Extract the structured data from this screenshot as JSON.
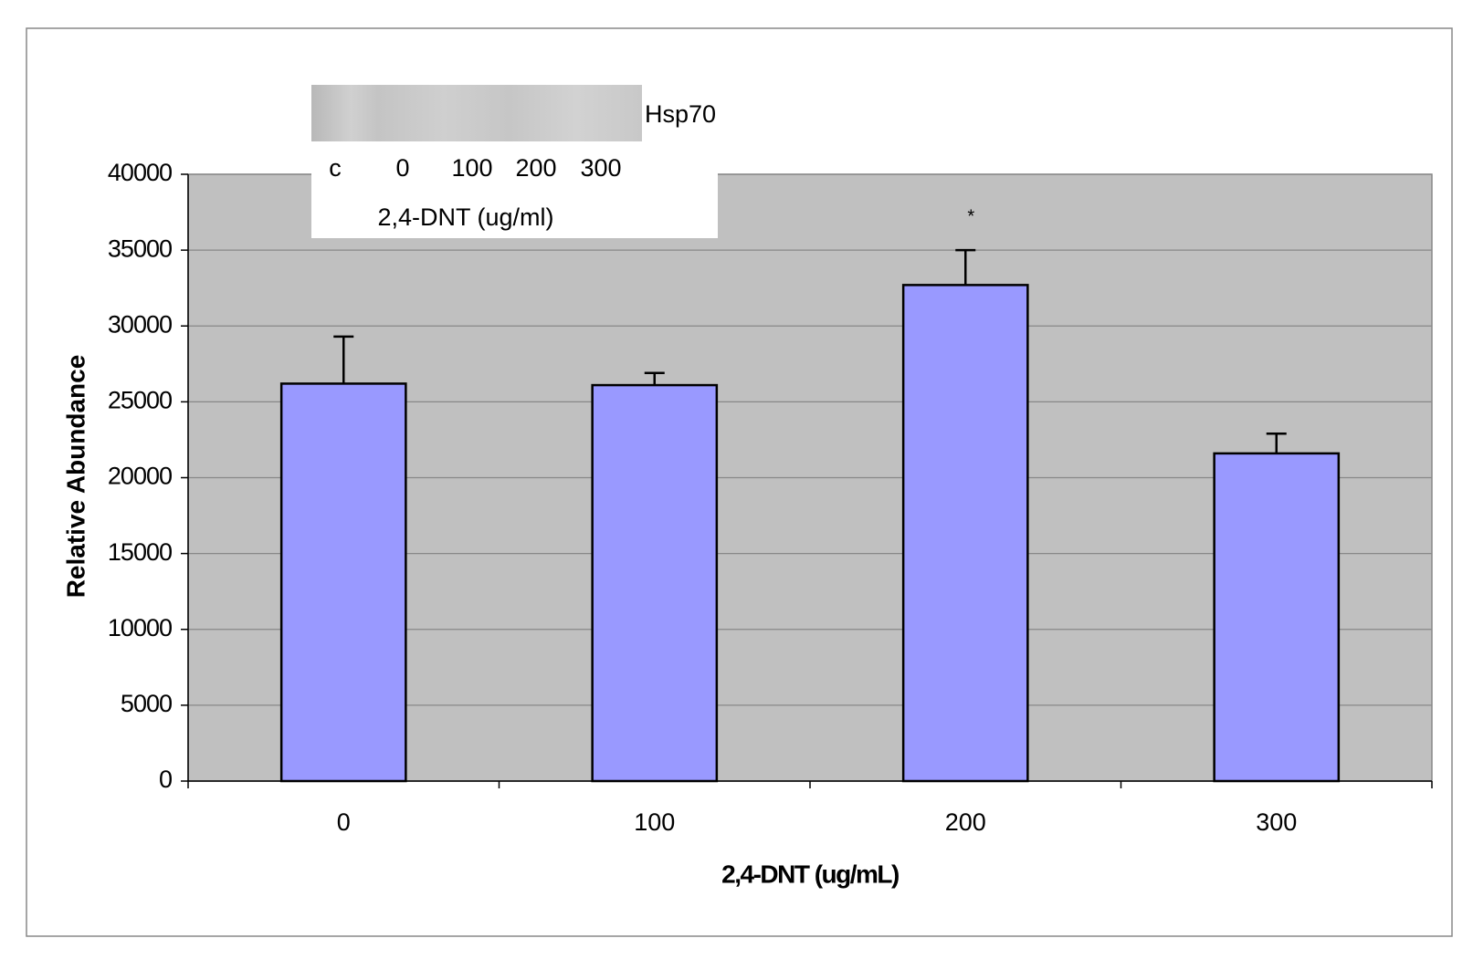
{
  "chart_data": {
    "type": "bar",
    "x_label": "2,4-DNT (ug/mL)",
    "y_label": "Relative Abundance",
    "categories": [
      "0",
      "100",
      "200",
      "300"
    ],
    "values": [
      26200,
      26100,
      32700,
      21600
    ],
    "errors": [
      3100,
      800,
      2300,
      1300
    ],
    "color": "#9999ff",
    "background": "#c0c0c0",
    "ylim": [
      0,
      40000
    ],
    "yticks": [
      0,
      5000,
      10000,
      15000,
      20000,
      25000,
      30000,
      35000,
      40000
    ],
    "grid": true,
    "annotations": [
      {
        "text": "*",
        "x": "200"
      }
    ],
    "inset": {
      "label": "Hsp70",
      "lanes": [
        "c",
        "0",
        "100",
        "200",
        "300"
      ],
      "caption": "2,4-DNT (ug/ml)"
    }
  }
}
